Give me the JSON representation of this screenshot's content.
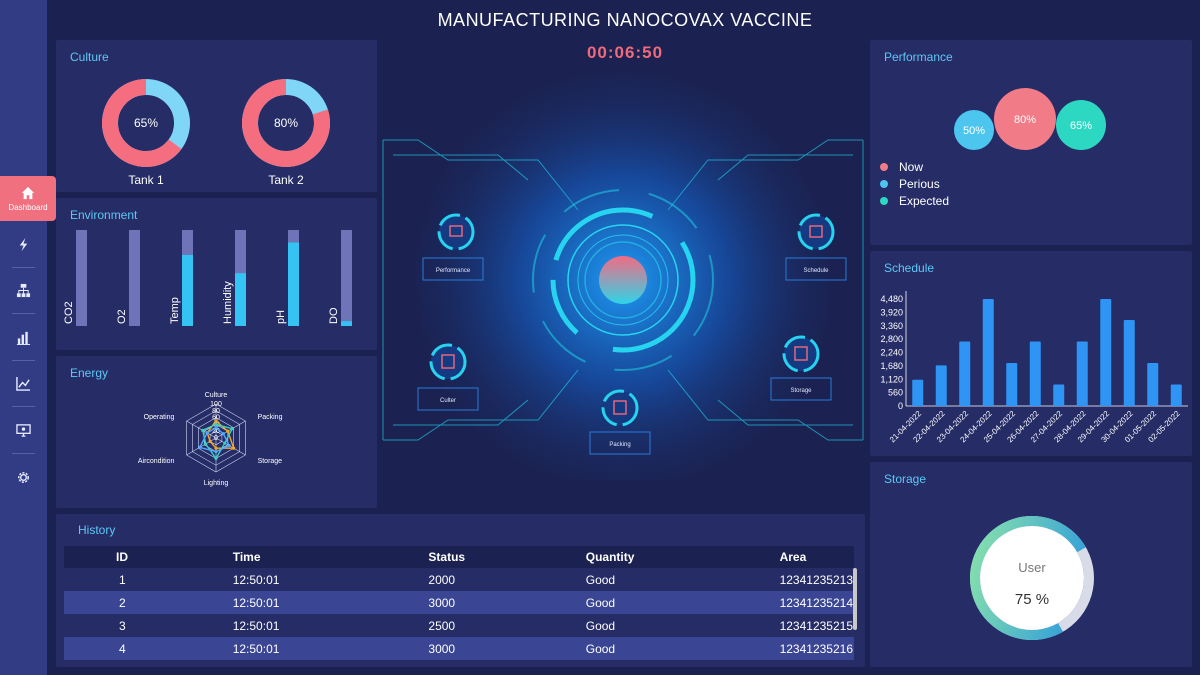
{
  "page": {
    "title": "MANUFACTURING NANOCOVAX VACCINE",
    "timer": "00:06:50"
  },
  "sidebar": {
    "active_label": "Dashboard",
    "items": [
      {
        "icon": "home-icon",
        "label": "Dashboard"
      },
      {
        "icon": "lightning-icon"
      },
      {
        "icon": "sitemap-icon"
      },
      {
        "icon": "bar-chart-icon"
      },
      {
        "icon": "trend-line-icon"
      },
      {
        "icon": "monitor-icon"
      },
      {
        "icon": "gear-icon"
      }
    ]
  },
  "culture": {
    "title": "Culture",
    "tanks": [
      {
        "label": "Tank 1",
        "value": "65%",
        "fraction": 0.65
      },
      {
        "label": "Tank 2",
        "value": "80%",
        "fraction": 0.8
      }
    ]
  },
  "environment": {
    "title": "Environment",
    "bars": [
      {
        "label": "CO2",
        "fraction": 0.0
      },
      {
        "label": "O2",
        "fraction": 0.0
      },
      {
        "label": "Temp",
        "fraction": 0.74
      },
      {
        "label": "Humidity",
        "fraction": 0.55
      },
      {
        "label": "pH",
        "fraction": 0.87
      },
      {
        "label": "DO",
        "fraction": 0.05
      }
    ]
  },
  "energy": {
    "title": "Energy",
    "axes": [
      "Culture",
      "Packing",
      "Storage",
      "Lighting",
      "Aircondition",
      "Operating"
    ],
    "ticks": [
      "100",
      "80",
      "60",
      "40",
      "20",
      "0"
    ],
    "series": [
      {
        "color": "#f5a623",
        "values": [
          50,
          40,
          60,
          30,
          20,
          30
        ]
      },
      {
        "color": "#37d1c0",
        "values": [
          40,
          55,
          30,
          60,
          35,
          45
        ]
      },
      {
        "color": "#4fa9ff",
        "values": [
          30,
          25,
          45,
          40,
          55,
          30
        ]
      }
    ]
  },
  "hud": {
    "labels": {
      "performance": "Performance",
      "schedule": "Schedule",
      "culter": "Culter",
      "storage": "Storage",
      "packing": "Packing"
    }
  },
  "performance": {
    "title": "Performance",
    "bubbles": [
      {
        "label": "50%",
        "color": "#4cc6ef"
      },
      {
        "label": "80%",
        "color": "#f27b88"
      },
      {
        "label": "65%",
        "color": "#2dd8c2"
      }
    ],
    "legend": [
      {
        "label": "Now",
        "color": "#f27b88"
      },
      {
        "label": "Perious",
        "color": "#4cc6ef"
      },
      {
        "label": "Expected",
        "color": "#2dd8c2"
      }
    ]
  },
  "schedule": {
    "title": "Schedule",
    "chart_data": {
      "type": "bar",
      "categories": [
        "21-04-2022",
        "22-04-2022",
        "23-04-2022",
        "24-04-2022",
        "25-04-2022",
        "26-04-2022",
        "27-04-2022",
        "28-04-2022",
        "29-04-2022",
        "30-04-2022",
        "01-05-2022",
        "02-05-2022"
      ],
      "values": [
        1100,
        1700,
        2700,
        4480,
        1800,
        2700,
        900,
        2700,
        4480,
        3600,
        1800,
        900
      ],
      "ylim": [
        0,
        4480
      ],
      "yticks": [
        "4,480",
        "3,920",
        "3,360",
        "2,800",
        "2,240",
        "1,680",
        "1,120",
        "560",
        "0"
      ],
      "bar_color": "#2f95f5",
      "grid": false
    }
  },
  "storage": {
    "title": "Storage",
    "center_label": "User",
    "value": "75 %",
    "fraction": 0.75
  },
  "history": {
    "title": "History",
    "columns": [
      "ID",
      "Time",
      "Status",
      "Quantity",
      "Area"
    ],
    "rows": [
      [
        "1",
        "12:50:01",
        "2000",
        "Good",
        "12341235213"
      ],
      [
        "2",
        "12:50:01",
        "3000",
        "Good",
        "12341235214"
      ],
      [
        "3",
        "12:50:01",
        "2500",
        "Good",
        "12341235215"
      ],
      [
        "4",
        "12:50:01",
        "3000",
        "Good",
        "12341235216"
      ]
    ]
  }
}
